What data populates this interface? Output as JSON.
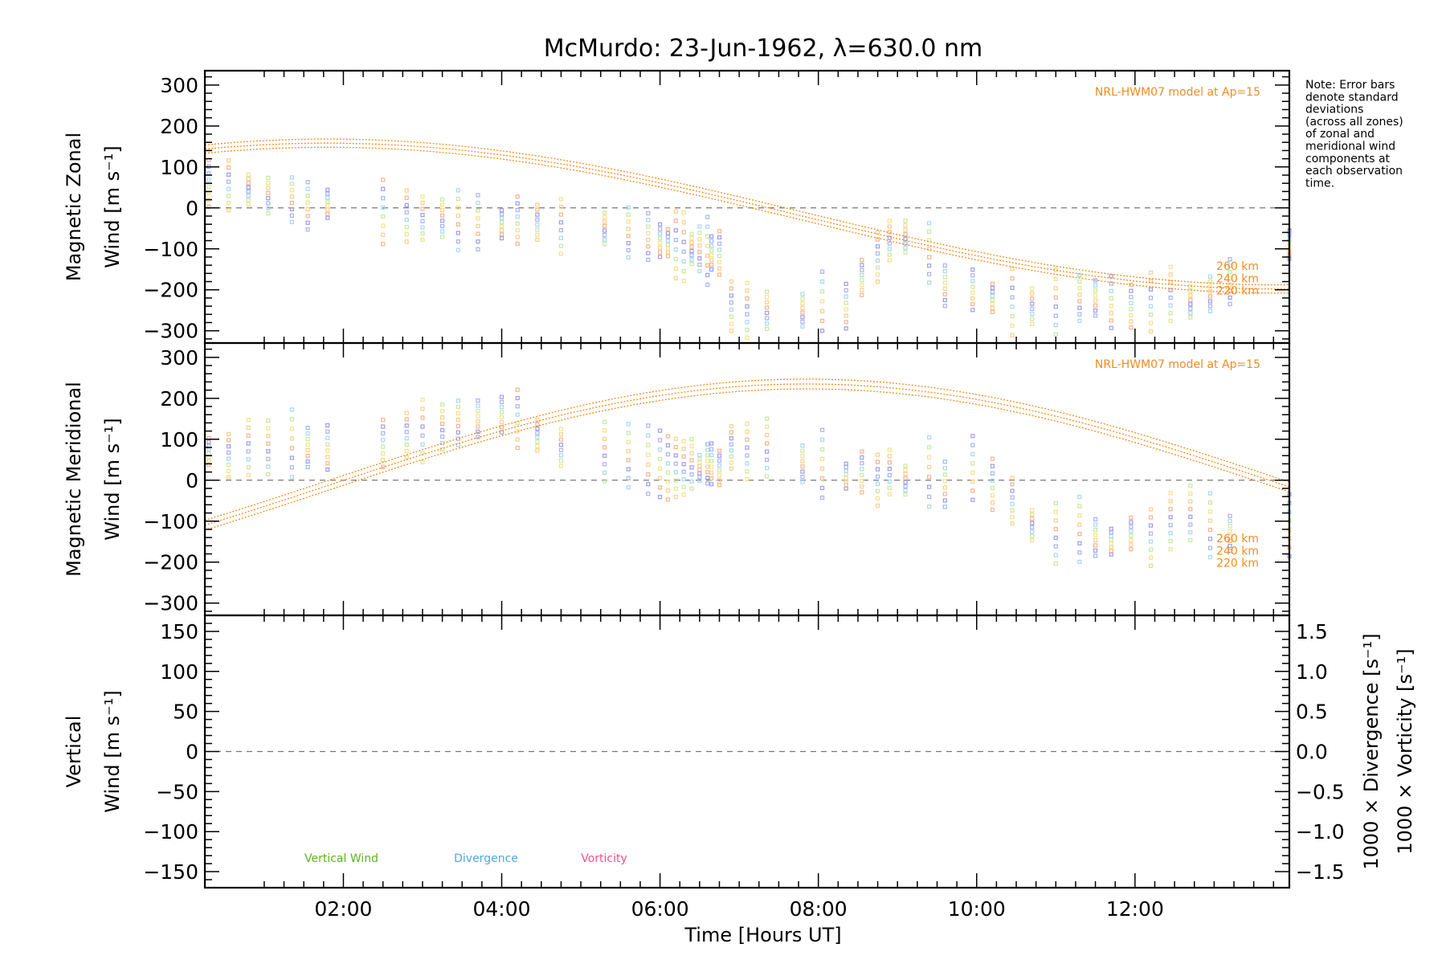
{
  "chart_data": {
    "title": "McMurdo: 23-Jun-1962, λ=630.0 nm",
    "note": [
      "Note: Error bars",
      "denote standard",
      "deviations",
      "(across all zones)",
      "of zonal and",
      "meridional wind",
      "components at",
      "each observation",
      "time."
    ],
    "xlabel": "Time [Hours UT]",
    "xlim": [
      0.25,
      13.95
    ],
    "xticks": [
      {
        "v": 2,
        "label": "02:00"
      },
      {
        "v": 4,
        "label": "04:00"
      },
      {
        "v": 6,
        "label": "06:00"
      },
      {
        "v": 8,
        "label": "08:00"
      },
      {
        "v": 10,
        "label": "10:00"
      },
      {
        "v": 12,
        "label": "12:00"
      }
    ],
    "obs_times": [
      0.3,
      0.55,
      0.8,
      1.05,
      1.35,
      1.55,
      1.8,
      2.5,
      2.8,
      3.0,
      3.25,
      3.45,
      3.7,
      4.0,
      4.2,
      4.45,
      4.75,
      5.3,
      5.6,
      5.85,
      6.0,
      6.1,
      6.2,
      6.3,
      6.4,
      6.5,
      6.6,
      6.65,
      6.75,
      6.9,
      7.1,
      7.35,
      7.8,
      8.05,
      8.35,
      8.55,
      8.75,
      8.9,
      9.1,
      9.4,
      9.6,
      9.95,
      10.2,
      10.45,
      10.7,
      11.0,
      11.3,
      11.5,
      11.7,
      11.95,
      12.2,
      12.45,
      12.7,
      12.95,
      13.2,
      13.95
    ],
    "panels": [
      {
        "type": "scatter",
        "ylabel_lines": [
          "Magnetic Zonal",
          "Wind [m s⁻¹]"
        ],
        "ylim": [
          -330,
          335
        ],
        "yticks": [
          300,
          200,
          100,
          0,
          -100,
          -200,
          -300
        ],
        "model_label": "NRL-HWM07 model at Ap=15",
        "height_labels": [
          "260 km",
          "240 km",
          "220 km"
        ],
        "model": {
          "type": "sine",
          "mean": -20,
          "amplitude": 178,
          "peak_hour": 1.8,
          "period": 24,
          "spread": 10
        },
        "obs_centers": [
          60,
          55,
          45,
          30,
          20,
          5,
          10,
          -10,
          -20,
          -25,
          -25,
          -30,
          -35,
          -40,
          -30,
          -35,
          -45,
          -50,
          -60,
          -70,
          -80,
          -85,
          -90,
          -95,
          -100,
          -100,
          -105,
          -110,
          -110,
          -240,
          -250,
          -250,
          -250,
          -240,
          -240,
          -170,
          -120,
          -80,
          -70,
          -110,
          -190,
          -200,
          -220,
          -230,
          -240,
          -230,
          -220,
          -220,
          -230,
          -240,
          -230,
          -210,
          -230,
          -210,
          -180,
          -90
        ]
      },
      {
        "type": "scatter",
        "ylabel_lines": [
          "Magnetic Meridional",
          "Wind [m s⁻¹]"
        ],
        "ylim": [
          -330,
          335
        ],
        "yticks": [
          300,
          200,
          100,
          0,
          -100,
          -200,
          -300
        ],
        "model_label": "NRL-HWM07 model at Ap=15",
        "height_labels": [
          "260 km",
          "240 km",
          "220 km"
        ],
        "model": {
          "type": "sine",
          "mean": -10,
          "amplitude": 245,
          "peak_hour": 7.85,
          "period": 24,
          "spread": 12
        },
        "obs_centers": [
          70,
          60,
          80,
          80,
          90,
          80,
          80,
          90,
          110,
          120,
          130,
          140,
          150,
          160,
          150,
          110,
          80,
          70,
          60,
          50,
          40,
          30,
          30,
          30,
          40,
          30,
          40,
          40,
          30,
          80,
          70,
          80,
          40,
          40,
          10,
          20,
          0,
          20,
          0,
          20,
          -10,
          30,
          -10,
          -50,
          -110,
          -130,
          -120,
          -140,
          -150,
          -130,
          -140,
          -100,
          -80,
          -110,
          -130,
          -110
        ]
      },
      {
        "type": "scatter",
        "ylabel_lines": [
          "Vertical",
          "Wind [m s⁻¹]"
        ],
        "ylim": [
          -170,
          170
        ],
        "yticks": [
          150,
          100,
          50,
          0,
          -50,
          -100,
          -150
        ],
        "y2lim": [
          -1.7,
          1.7
        ],
        "y2ticks": [
          1.5,
          1.0,
          0.5,
          0.0,
          -0.5,
          -1.0,
          -1.5
        ],
        "y2labels": [
          "1000 × Divergence [s⁻¹]",
          "1000 × Vorticity [s⁻¹]"
        ],
        "legend": [
          "Vertical Wind",
          "Divergence",
          "Vorticity"
        ]
      }
    ],
    "colors": {
      "model": "#f08c1e",
      "vertical": "#5cb41e",
      "divergence": "#50a8dc",
      "vorticity": "#f0508c",
      "y2_div_label": "#50a8dc",
      "y2_vort_label": "#f05a96",
      "ylabel_vertical": "#5cb41e",
      "palette": [
        "#f5b48c",
        "#f7d08c",
        "#f2e28c",
        "#c8e8a0",
        "#a8d8f0",
        "#a8b4f0",
        "#9c9ce8"
      ]
    }
  }
}
